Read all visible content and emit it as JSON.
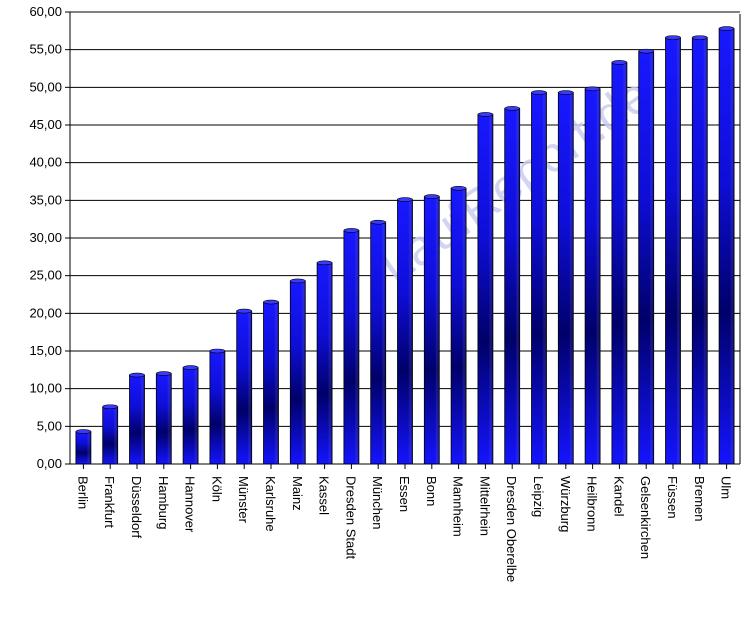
{
  "watermark": "LaufReport.de",
  "chart_data": {
    "type": "bar",
    "categories": [
      "Berlin",
      "Frankfurt",
      "Düsseldorf",
      "Hamburg",
      "Hannover",
      "Köln",
      "Münster",
      "Karlsruhe",
      "Mainz",
      "Kassel",
      "Dresden Stadt",
      "München",
      "Essen",
      "Bonn",
      "Mannheim",
      "Mittelrhein",
      "Dresden Oberelbe",
      "Leipzig",
      "Würzburg",
      "Heilbronn",
      "Kandel",
      "Gelsenkirchen",
      "Füssen",
      "Bremen",
      "Ulm"
    ],
    "values": [
      4.3,
      7.6,
      11.8,
      12.0,
      12.8,
      15.0,
      20.3,
      21.5,
      24.3,
      26.7,
      31.0,
      32.1,
      35.1,
      35.5,
      36.6,
      46.4,
      47.2,
      49.3,
      49.3,
      49.8,
      53.3,
      54.8,
      56.6,
      56.6,
      57.8
    ],
    "ylim": [
      0,
      60
    ],
    "yticks": [
      "0,00",
      "5,00",
      "10,00",
      "15,00",
      "20,00",
      "25,00",
      "30,00",
      "35,00",
      "40,00",
      "45,00",
      "50,00",
      "55,00",
      "60,00"
    ],
    "grid": true,
    "bar_color": "#1414ff"
  }
}
